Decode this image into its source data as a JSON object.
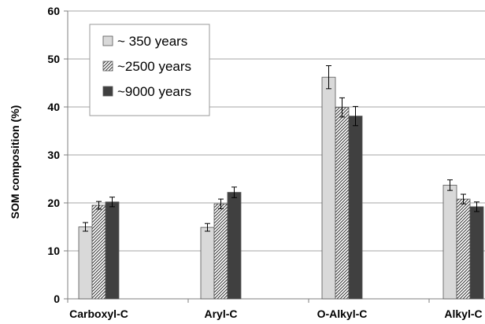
{
  "chart_data": {
    "type": "bar",
    "title": "",
    "xlabel": "",
    "ylabel": "SOM composition (%)",
    "ylim": [
      0,
      60
    ],
    "yticks": [
      0,
      10,
      20,
      30,
      40,
      50,
      60
    ],
    "grid": true,
    "legend_position": "top-left",
    "categories": [
      "Carboxyl-C",
      "Aryl-C",
      "O-Alkyl-C",
      "Alkyl-C"
    ],
    "series": [
      {
        "name": "~ 350 years",
        "pattern": "solid",
        "color": "#d9d9d9",
        "values": [
          15.0,
          14.9,
          46.2,
          23.7
        ],
        "errors": [
          0.9,
          0.8,
          2.4,
          1.1
        ]
      },
      {
        "name": "~2500 years",
        "pattern": "hatched",
        "color": "#ffffff",
        "values": [
          19.5,
          19.8,
          39.9,
          20.8
        ],
        "errors": [
          0.8,
          1.0,
          2.0,
          1.0
        ]
      },
      {
        "name": "~9000 years",
        "pattern": "solid",
        "color": "#404040",
        "values": [
          20.2,
          22.2,
          38.1,
          19.2
        ],
        "errors": [
          1.0,
          1.1,
          2.0,
          1.0
        ]
      }
    ]
  }
}
